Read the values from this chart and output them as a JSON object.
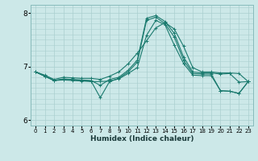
{
  "xlabel": "Humidex (Indice chaleur)",
  "ylabel": "",
  "bg_color": "#cce8e8",
  "line_color": "#1a7a6e",
  "grid_color": "#aacfcf",
  "grid_color_major": "#c0dcdc",
  "xlim": [
    -0.5,
    23.5
  ],
  "ylim": [
    5.9,
    8.15
  ],
  "yticks": [
    6,
    7,
    8
  ],
  "xticks": [
    0,
    1,
    2,
    3,
    4,
    5,
    6,
    7,
    8,
    9,
    10,
    11,
    12,
    13,
    14,
    15,
    16,
    17,
    18,
    19,
    20,
    21,
    22,
    23
  ],
  "line1_x": [
    0,
    1,
    2,
    3,
    4,
    5,
    6,
    7,
    8,
    9,
    10,
    11,
    12,
    13,
    14,
    15,
    16,
    17,
    18,
    19,
    20,
    21,
    22,
    23
  ],
  "line1_y": [
    6.9,
    6.84,
    6.76,
    6.8,
    6.79,
    6.78,
    6.78,
    6.76,
    6.82,
    6.9,
    7.05,
    7.25,
    7.48,
    7.72,
    7.82,
    7.7,
    7.38,
    6.98,
    6.9,
    6.9,
    6.88,
    6.88,
    6.87,
    6.72
  ],
  "line2_x": [
    0,
    1,
    2,
    3,
    4,
    5,
    6,
    7,
    8,
    9,
    10,
    11,
    12,
    13,
    14,
    15,
    16,
    17,
    18,
    19,
    20,
    21,
    22,
    23
  ],
  "line2_y": [
    6.9,
    6.82,
    6.74,
    6.77,
    6.76,
    6.75,
    6.74,
    6.65,
    6.76,
    6.8,
    6.93,
    7.12,
    7.9,
    7.95,
    7.84,
    7.62,
    7.18,
    6.9,
    6.88,
    6.88,
    6.86,
    6.87,
    6.71,
    6.72
  ],
  "line3_x": [
    0,
    1,
    2,
    3,
    4,
    5,
    6,
    7,
    8,
    9,
    10,
    11,
    12,
    13,
    14,
    15,
    16,
    17,
    18,
    19,
    20,
    21,
    22,
    23
  ],
  "line3_y": [
    6.9,
    6.82,
    6.74,
    6.76,
    6.75,
    6.74,
    6.73,
    6.42,
    6.72,
    6.78,
    6.9,
    7.08,
    7.86,
    7.92,
    7.8,
    7.55,
    7.12,
    6.87,
    6.86,
    6.86,
    6.55,
    6.54,
    6.5,
    6.72
  ],
  "line4_x": [
    0,
    1,
    2,
    3,
    4,
    5,
    6,
    7,
    8,
    9,
    10,
    11,
    12,
    13,
    14,
    15,
    16,
    17,
    18,
    19,
    20,
    21,
    22,
    23
  ],
  "line4_y": [
    6.9,
    6.82,
    6.74,
    6.75,
    6.74,
    6.73,
    6.72,
    6.72,
    6.73,
    6.77,
    6.87,
    6.98,
    7.58,
    7.86,
    7.78,
    7.4,
    7.06,
    6.84,
    6.83,
    6.83,
    6.55,
    6.54,
    6.5,
    6.72
  ]
}
